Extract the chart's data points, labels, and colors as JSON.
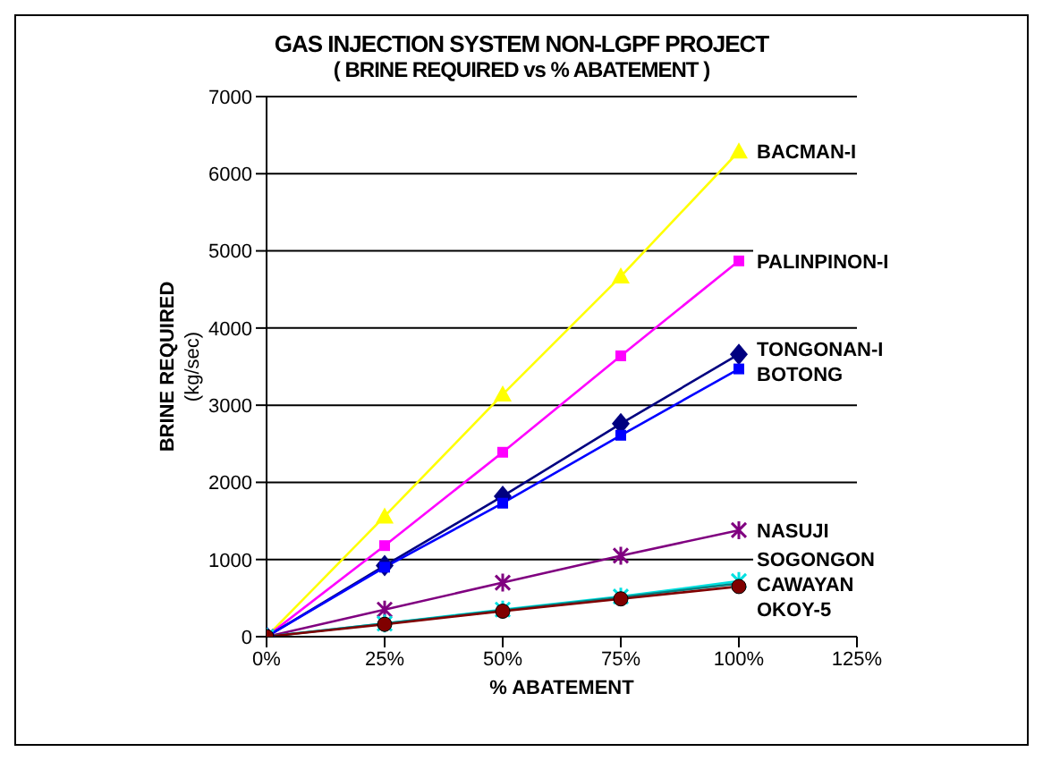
{
  "chart_data": {
    "type": "line",
    "title": "GAS INJECTION SYSTEM NON-LGPF PROJECT",
    "subtitle": "( BRINE REQUIRED vs % ABATEMENT )",
    "xlabel": "% ABATEMENT",
    "ylabel": "BRINE REQUIRED (kg/sec)",
    "x": [
      0,
      25,
      50,
      75,
      100
    ],
    "xlim": [
      0,
      125
    ],
    "xticks": [
      {
        "value": 0,
        "label": "0%"
      },
      {
        "value": 25,
        "label": "25%"
      },
      {
        "value": 50,
        "label": "50%"
      },
      {
        "value": 75,
        "label": "75%"
      },
      {
        "value": 100,
        "label": "100%"
      },
      {
        "value": 125,
        "label": "125%"
      }
    ],
    "ylim": [
      0,
      7000
    ],
    "yticks": [
      0,
      1000,
      2000,
      3000,
      4000,
      5000,
      6000,
      7000
    ],
    "grid": "y",
    "legend": false,
    "series": [
      {
        "name": "BACMAN-I",
        "color": "#ffff00",
        "marker": "triangle",
        "values": [
          0,
          1560,
          3140,
          4670,
          6290
        ]
      },
      {
        "name": "PALINPINON-I",
        "color": "#ff00ff",
        "marker": "square",
        "values": [
          0,
          1180,
          2390,
          3640,
          4870
        ]
      },
      {
        "name": "TONGONAN-I",
        "color": "#000080",
        "marker": "diamond",
        "values": [
          0,
          920,
          1820,
          2760,
          3660
        ]
      },
      {
        "name": "BOTONG",
        "color": "#0000ff",
        "marker": "square",
        "values": [
          0,
          900,
          1730,
          2610,
          3470
        ]
      },
      {
        "name": "NASUJI",
        "color": "#800080",
        "marker": "cross",
        "values": [
          0,
          350,
          700,
          1050,
          1380
        ]
      },
      {
        "name": "SOGONGON",
        "color": "#00e0e0",
        "marker": "cross",
        "values": [
          0,
          170,
          350,
          520,
          720
        ]
      },
      {
        "name": "CAWAYAN",
        "color": "#008080",
        "marker": "none",
        "values": [
          0,
          170,
          340,
          510,
          690
        ]
      },
      {
        "name": "OKOY-5",
        "color": "#800000",
        "marker": "circle",
        "values": [
          0,
          160,
          330,
          490,
          650
        ]
      }
    ]
  }
}
